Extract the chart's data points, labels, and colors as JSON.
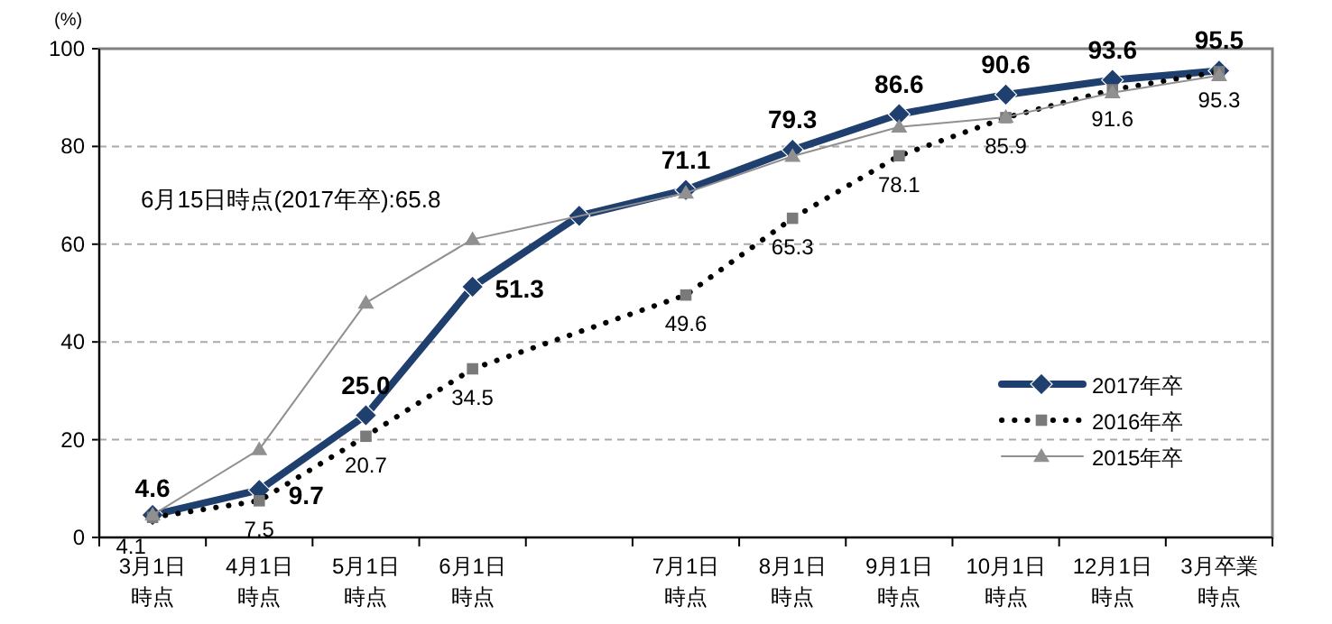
{
  "chart_data": {
    "type": "line",
    "ylabel": "(%)",
    "categories": [
      "3月1日時点",
      "4月1日時点",
      "5月1日時点",
      "6月1日時点",
      null,
      "7月1日時点",
      "8月1日時点",
      "9月1日時点",
      "10月1日時点",
      "12月1日時点",
      "3月卒業時点"
    ],
    "ylim": [
      0,
      100
    ],
    "yticks": [
      0,
      20,
      40,
      60,
      80,
      100
    ],
    "grid": "y",
    "legend": "bottom right",
    "annotations": [
      "6月15日時点(2017年卒):65.8"
    ],
    "series": [
      {
        "name": "2017年卒",
        "color": "#1f3f6e",
        "marker": "diamond",
        "line_style": "solid",
        "values": [
          4.6,
          9.7,
          25.0,
          51.3,
          65.8,
          71.1,
          79.3,
          86.6,
          90.6,
          93.6,
          95.5
        ],
        "value_labels": [
          "4.6",
          "9.7",
          "25.0",
          "51.3",
          null,
          "71.1",
          "79.3",
          "86.6",
          "90.6",
          "93.6",
          "95.5"
        ]
      },
      {
        "name": "2016年卒",
        "color": "#000000",
        "marker": "square",
        "line_style": "dotted",
        "values": [
          4.1,
          7.5,
          20.7,
          34.5,
          null,
          49.6,
          65.3,
          78.1,
          85.9,
          91.6,
          95.3
        ],
        "value_labels": [
          "4.1",
          "7.5",
          "20.7",
          "34.5",
          null,
          "49.6",
          "65.3",
          "78.1",
          "85.9",
          "91.6",
          "95.3"
        ]
      },
      {
        "name": "2015年卒",
        "color": "#909090",
        "marker": "triangle",
        "line_style": "solid",
        "values": [
          4.6,
          18,
          48,
          61,
          null,
          70.5,
          78,
          84,
          86,
          91,
          94.5
        ]
      }
    ]
  }
}
